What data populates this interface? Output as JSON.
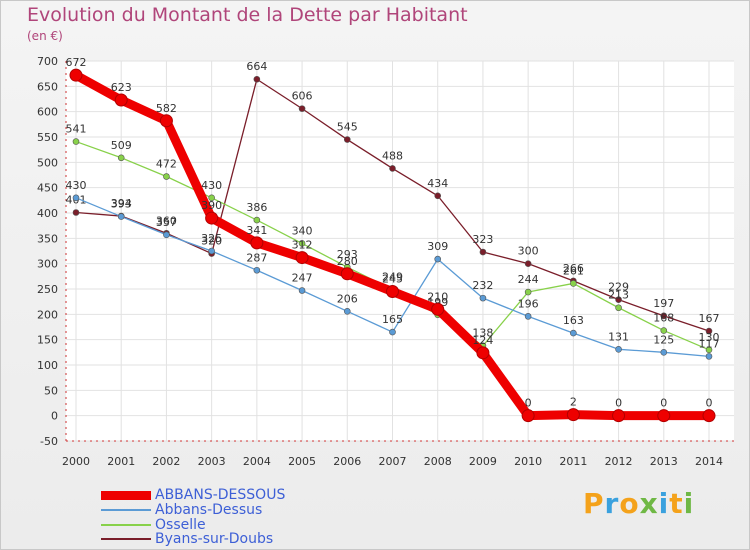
{
  "header": {
    "title": "Evolution du Montant de la Dette par Habitant",
    "unit": "(en €)"
  },
  "brand": {
    "text": "Proxiti",
    "letter_colors": [
      "#f4a21b",
      "#3aa1de",
      "#f4a21b",
      "#6fb845",
      "#3aa1de",
      "#f4a21b",
      "#6fb845"
    ]
  },
  "chart_data": {
    "type": "line",
    "x": [
      "2000",
      "2001",
      "2002",
      "2003",
      "2004",
      "2005",
      "2006",
      "2007",
      "2008",
      "2009",
      "2010",
      "2011",
      "2012",
      "2013",
      "2014"
    ],
    "ylim": [
      -50,
      700
    ],
    "yticks": [
      -50,
      0,
      50,
      100,
      150,
      200,
      250,
      300,
      350,
      400,
      450,
      500,
      550,
      600,
      650,
      700
    ],
    "grid": true,
    "legend_position": "bottom-left",
    "series": [
      {
        "name": "Byans-sur-Doubs",
        "color": "#7a1e2a",
        "values": [
          401,
          394,
          360,
          320,
          664,
          606,
          545,
          488,
          434,
          323,
          300,
          266,
          229,
          197,
          167
        ]
      },
      {
        "name": "Osselle",
        "color": "#88d14a",
        "values": [
          541,
          509,
          472,
          430,
          386,
          340,
          293,
          249,
          199,
          138,
          244,
          261,
          213,
          168,
          130
        ]
      },
      {
        "name": "Abbans-Dessus",
        "color": "#5b9bd5",
        "values": [
          430,
          393,
          357,
          325,
          287,
          247,
          206,
          165,
          309,
          232,
          196,
          163,
          131,
          125,
          117
        ]
      },
      {
        "name": "ABBANS-DESSOUS",
        "color": "#ee0000",
        "values": [
          672,
          623,
          582,
          390,
          341,
          312,
          280,
          245,
          210,
          124,
          0,
          2,
          0,
          0,
          0
        ]
      }
    ]
  }
}
